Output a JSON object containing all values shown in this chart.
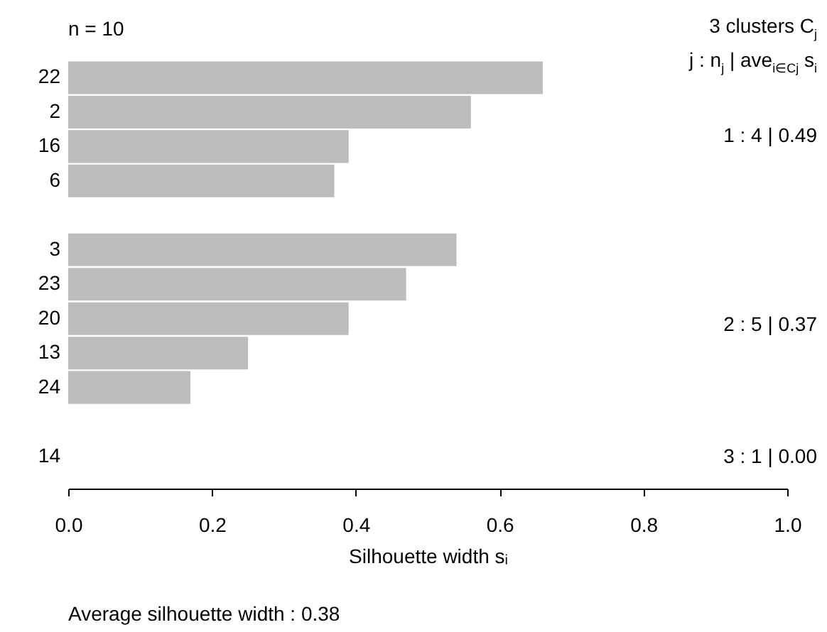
{
  "chart_data": {
    "type": "bar",
    "orientation": "horizontal",
    "xlabel": "Silhouette width sᵢ",
    "color": "#bdbcba",
    "categories": [
      "22",
      "2",
      "16",
      "6",
      null,
      "3",
      "23",
      "20",
      "13",
      "24",
      null,
      "14"
    ],
    "values": [
      0.66,
      0.56,
      0.39,
      0.37,
      null,
      0.54,
      0.47,
      0.39,
      0.25,
      0.17,
      null,
      0
    ],
    "xlim": [
      0,
      1
    ],
    "xticks": [
      {
        "value": 0,
        "label": "0.0"
      },
      0.2,
      0.4,
      0.6,
      0.8,
      {
        "value": 1,
        "label": "1.0"
      }
    ],
    "annotations": [
      "n = 10",
      "3  clusters  C$_{j}$",
      "j :  n$_{j}$ | ave$_{i∈Cj}$  s$_{i}$",
      "1 :   4  |  0.49",
      "2 :   5  |  0.37",
      "3 :   1  |  0.00",
      "Average silhouette width :  0.38"
    ]
  }
}
